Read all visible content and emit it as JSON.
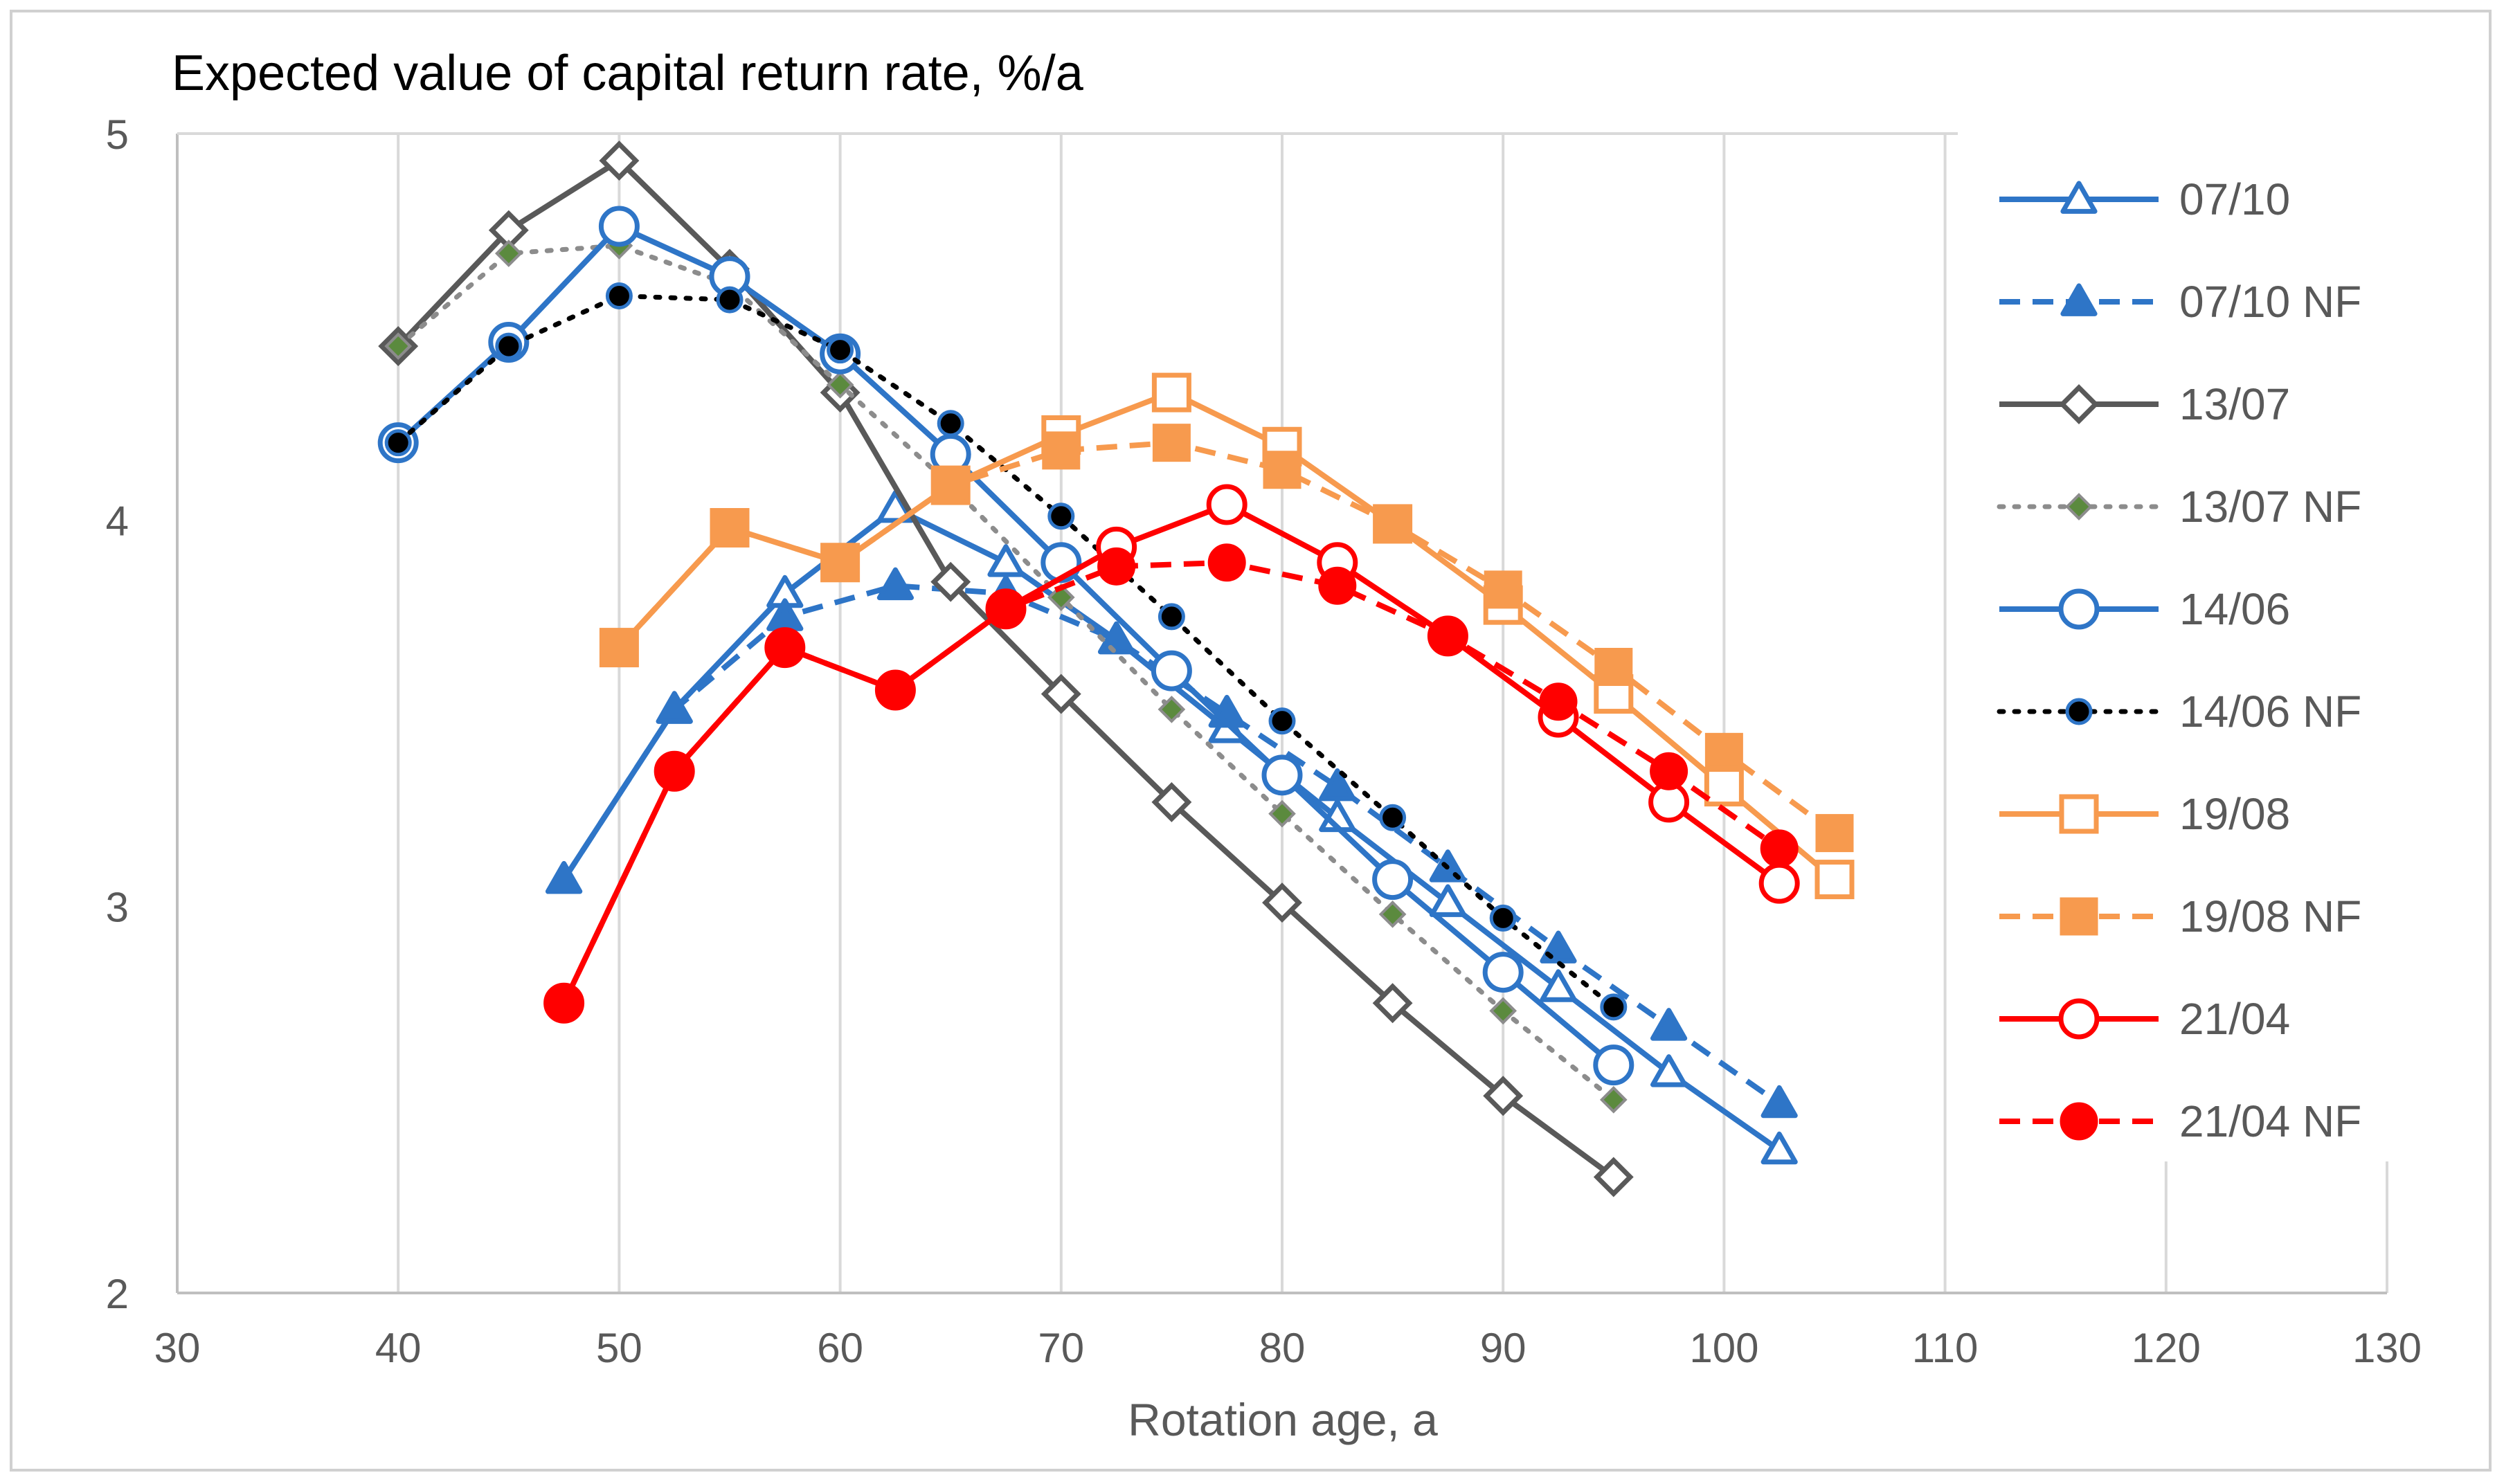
{
  "chart_data": {
    "type": "line",
    "title": "Expected value of capital return rate,  %/a",
    "xlabel": "Rotation age, a",
    "ylabel": "",
    "xlim": [
      30,
      130
    ],
    "ylim": [
      2,
      5
    ],
    "xticks": [
      "30",
      "40",
      "50",
      "60",
      "70",
      "80",
      "90",
      "100",
      "110",
      "120",
      "130"
    ],
    "yticks": [
      "2",
      "3",
      "4",
      "5"
    ],
    "grid": "vertical",
    "legend_position": "right",
    "series": [
      {
        "name": "07/10",
        "color": "#2e75c7",
        "dash": "solid",
        "marker": "triangle",
        "filled": false,
        "points": [
          [
            47.5,
            3.07
          ],
          [
            52.5,
            3.51
          ],
          [
            57.5,
            3.81
          ],
          [
            62.5,
            4.03
          ],
          [
            67.5,
            3.89
          ],
          [
            72.5,
            3.69
          ],
          [
            77.5,
            3.46
          ],
          [
            82.5,
            3.23
          ],
          [
            87.5,
            3.01
          ],
          [
            92.5,
            2.79
          ],
          [
            97.5,
            2.57
          ],
          [
            102.5,
            2.37
          ]
        ]
      },
      {
        "name": "07/10 NF",
        "color": "#2e75c7",
        "dash": "dashed",
        "marker": "triangle",
        "filled": true,
        "points": [
          [
            47.5,
            3.07
          ],
          [
            52.5,
            3.51
          ],
          [
            57.5,
            3.75
          ],
          [
            62.5,
            3.83
          ],
          [
            67.5,
            3.81
          ],
          [
            72.5,
            3.69
          ],
          [
            77.5,
            3.5
          ],
          [
            82.5,
            3.31
          ],
          [
            87.5,
            3.1
          ],
          [
            92.5,
            2.89
          ],
          [
            97.5,
            2.69
          ],
          [
            102.5,
            2.49
          ]
        ]
      },
      {
        "name": "13/07",
        "color": "#595959",
        "dash": "solid",
        "marker": "diamond",
        "filled": false,
        "points": [
          [
            40,
            4.45
          ],
          [
            45,
            4.75
          ],
          [
            50,
            4.93
          ],
          [
            55,
            4.65
          ],
          [
            60,
            4.33
          ],
          [
            65,
            3.84
          ],
          [
            70,
            3.55
          ],
          [
            75,
            3.27
          ],
          [
            80,
            3.01
          ],
          [
            85,
            2.75
          ],
          [
            90,
            2.51
          ],
          [
            95,
            2.3
          ]
        ]
      },
      {
        "name": "13/07 NF",
        "color": "#8c8c8c",
        "dash": "dotted",
        "marker": "diamond",
        "filled": true,
        "markerFill": "#5b8a3e",
        "points": [
          [
            40,
            4.45
          ],
          [
            45,
            4.69
          ],
          [
            50,
            4.71
          ],
          [
            55,
            4.61
          ],
          [
            60,
            4.35
          ],
          [
            65,
            4.09
          ],
          [
            70,
            3.8
          ],
          [
            75,
            3.51
          ],
          [
            80,
            3.24
          ],
          [
            85,
            2.98
          ],
          [
            90,
            2.73
          ],
          [
            95,
            2.5
          ]
        ]
      },
      {
        "name": "14/06",
        "color": "#2e75c7",
        "dash": "solid",
        "marker": "circle",
        "filled": false,
        "points": [
          [
            40,
            4.2
          ],
          [
            45,
            4.46
          ],
          [
            50,
            4.76
          ],
          [
            55,
            4.63
          ],
          [
            60,
            4.43
          ],
          [
            65,
            4.17
          ],
          [
            70,
            3.89
          ],
          [
            75,
            3.61
          ],
          [
            80,
            3.34
          ],
          [
            85,
            3.07
          ],
          [
            90,
            2.83
          ],
          [
            95,
            2.59
          ]
        ]
      },
      {
        "name": "14/06 NF",
        "color": "#000000",
        "dash": "dotted",
        "marker": "circle",
        "filled": true,
        "markerFill": "#000000",
        "markerStroke": "#2e75c7",
        "points": [
          [
            40,
            4.2
          ],
          [
            45,
            4.45
          ],
          [
            50,
            4.58
          ],
          [
            55,
            4.57
          ],
          [
            60,
            4.44
          ],
          [
            65,
            4.25
          ],
          [
            70,
            4.01
          ],
          [
            75,
            3.75
          ],
          [
            80,
            3.48
          ],
          [
            85,
            3.23
          ],
          [
            90,
            2.97
          ],
          [
            95,
            2.74
          ]
        ]
      },
      {
        "name": "19/08",
        "color": "#f79a4e",
        "dash": "solid",
        "marker": "square",
        "filled": false,
        "points": [
          [
            50,
            3.67
          ],
          [
            55,
            3.98
          ],
          [
            60,
            3.89
          ],
          [
            65,
            4.09
          ],
          [
            70,
            4.22
          ],
          [
            75,
            4.33
          ],
          [
            80,
            4.19
          ],
          [
            85,
            3.99
          ],
          [
            90,
            3.78
          ],
          [
            95,
            3.55
          ],
          [
            100,
            3.31
          ],
          [
            105,
            3.07
          ]
        ]
      },
      {
        "name": "19/08 NF",
        "color": "#f79a4e",
        "dash": "dashed",
        "marker": "square",
        "filled": true,
        "points": [
          [
            50,
            3.67
          ],
          [
            55,
            3.98
          ],
          [
            60,
            3.89
          ],
          [
            65,
            4.09
          ],
          [
            70,
            4.18
          ],
          [
            75,
            4.2
          ],
          [
            80,
            4.13
          ],
          [
            85,
            3.99
          ],
          [
            90,
            3.82
          ],
          [
            95,
            3.62
          ],
          [
            100,
            3.4
          ],
          [
            105,
            3.19
          ]
        ]
      },
      {
        "name": "21/04",
        "color": "#ff0000",
        "dash": "solid",
        "marker": "circle",
        "filled": false,
        "points": [
          [
            47.5,
            2.75
          ],
          [
            52.5,
            3.35
          ],
          [
            57.5,
            3.67
          ],
          [
            62.5,
            3.56
          ],
          [
            67.5,
            3.77
          ],
          [
            72.5,
            3.93
          ],
          [
            77.5,
            4.04
          ],
          [
            82.5,
            3.89
          ],
          [
            87.5,
            3.7
          ],
          [
            92.5,
            3.49
          ],
          [
            97.5,
            3.27
          ],
          [
            102.5,
            3.06
          ]
        ]
      },
      {
        "name": "21/04 NF",
        "color": "#ff0000",
        "dash": "dashed",
        "marker": "circle",
        "filled": true,
        "points": [
          [
            47.5,
            2.75
          ],
          [
            52.5,
            3.35
          ],
          [
            57.5,
            3.67
          ],
          [
            62.5,
            3.56
          ],
          [
            67.5,
            3.77
          ],
          [
            72.5,
            3.88
          ],
          [
            77.5,
            3.89
          ],
          [
            82.5,
            3.83
          ],
          [
            87.5,
            3.7
          ],
          [
            92.5,
            3.53
          ],
          [
            97.5,
            3.35
          ],
          [
            102.5,
            3.15
          ]
        ]
      }
    ]
  }
}
